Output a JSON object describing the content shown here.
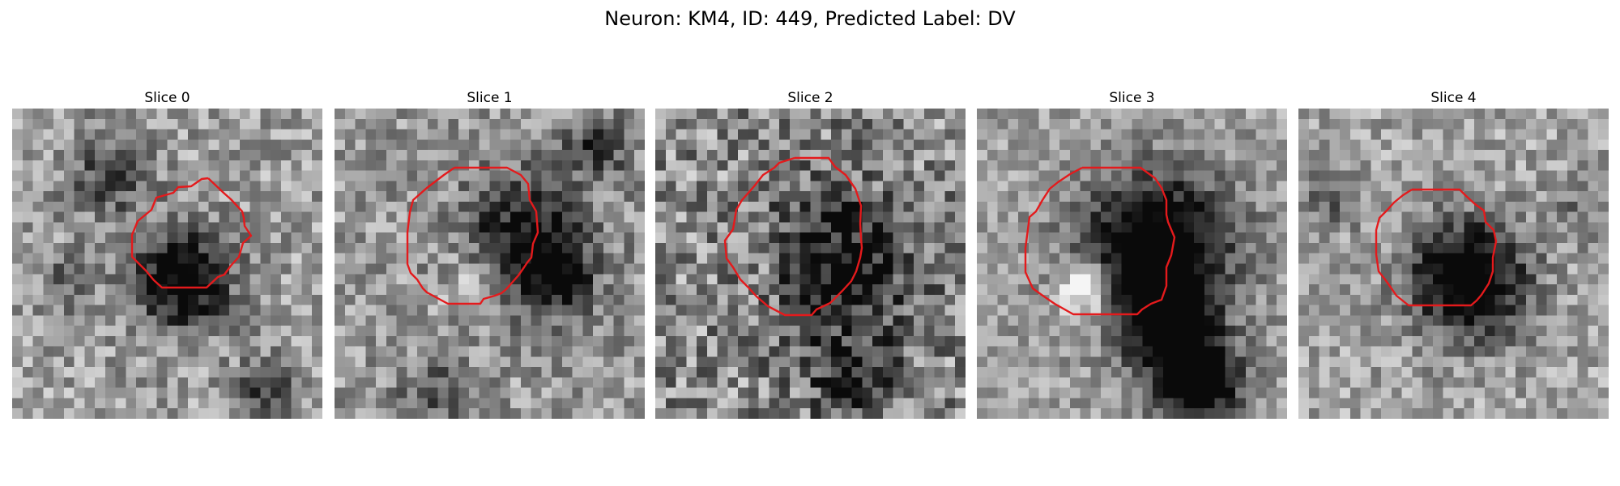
{
  "figure": {
    "title": "Neuron: KM4, ID: 449, Predicted Label: DV",
    "contour_color": "#e41a1c"
  },
  "panels": [
    {
      "title": "Slice 0"
    },
    {
      "title": "Slice 1"
    },
    {
      "title": "Slice 2"
    },
    {
      "title": "Slice 3"
    },
    {
      "title": "Slice 4"
    }
  ]
}
